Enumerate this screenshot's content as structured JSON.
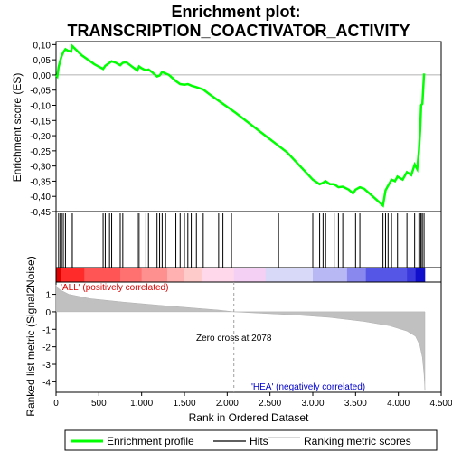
{
  "chart_data": {
    "type": "line",
    "title_line1": "Enrichment plot:",
    "title_line2": "TRANSCRIPTION_COACTIVATOR_ACTIVITY",
    "top_panel": {
      "ylabel": "Enrichment score (ES)",
      "ylim": [
        -0.45,
        0.11
      ],
      "yticks": [
        "0,10",
        "0,05",
        "0,00",
        "-0,05",
        "-0,10",
        "-0,15",
        "-0,20",
        "-0,25",
        "-0,30",
        "-0,35",
        "-0,40",
        "-0,45"
      ],
      "ytick_values": [
        0.1,
        0.05,
        0.0,
        -0.05,
        -0.1,
        -0.15,
        -0.2,
        -0.25,
        -0.3,
        -0.35,
        -0.4,
        -0.45
      ],
      "series_name": "Enrichment profile",
      "color": "#00ff00",
      "points": [
        [
          0,
          0.0
        ],
        [
          15,
          -0.005
        ],
        [
          30,
          0.025
        ],
        [
          50,
          0.048
        ],
        [
          65,
          0.062
        ],
        [
          85,
          0.075
        ],
        [
          110,
          0.085
        ],
        [
          140,
          0.08
        ],
        [
          175,
          0.077
        ],
        [
          190,
          0.095
        ],
        [
          300,
          0.065
        ],
        [
          450,
          0.035
        ],
        [
          550,
          0.02
        ],
        [
          575,
          0.03
        ],
        [
          600,
          0.035
        ],
        [
          625,
          0.04
        ],
        [
          650,
          0.045
        ],
        [
          700,
          0.04
        ],
        [
          750,
          0.032
        ],
        [
          780,
          0.04
        ],
        [
          820,
          0.042
        ],
        [
          900,
          0.025
        ],
        [
          950,
          0.015
        ],
        [
          970,
          0.028
        ],
        [
          1000,
          0.022
        ],
        [
          1050,
          0.015
        ],
        [
          1080,
          0.018
        ],
        [
          1120,
          0.01
        ],
        [
          1180,
          -0.005
        ],
        [
          1210,
          -0.002
        ],
        [
          1240,
          0.01
        ],
        [
          1280,
          0.005
        ],
        [
          1320,
          0.0
        ],
        [
          1400,
          -0.02
        ],
        [
          1450,
          -0.03
        ],
        [
          1500,
          -0.032
        ],
        [
          1540,
          -0.03
        ],
        [
          1580,
          -0.035
        ],
        [
          1640,
          -0.04
        ],
        [
          1720,
          -0.048
        ],
        [
          1800,
          -0.065
        ],
        [
          1950,
          -0.095
        ],
        [
          2100,
          -0.125
        ],
        [
          2400,
          -0.19
        ],
        [
          2700,
          -0.255
        ],
        [
          2950,
          -0.33
        ],
        [
          3000,
          -0.345
        ],
        [
          3080,
          -0.36
        ],
        [
          3120,
          -0.355
        ],
        [
          3150,
          -0.35
        ],
        [
          3200,
          -0.36
        ],
        [
          3250,
          -0.36
        ],
        [
          3300,
          -0.37
        ],
        [
          3350,
          -0.368
        ],
        [
          3420,
          -0.378
        ],
        [
          3470,
          -0.39
        ],
        [
          3500,
          -0.378
        ],
        [
          3550,
          -0.37
        ],
        [
          3600,
          -0.375
        ],
        [
          3700,
          -0.4
        ],
        [
          3820,
          -0.43
        ],
        [
          3850,
          -0.38
        ],
        [
          3880,
          -0.365
        ],
        [
          3920,
          -0.345
        ],
        [
          3960,
          -0.35
        ],
        [
          3990,
          -0.335
        ],
        [
          4050,
          -0.345
        ],
        [
          4100,
          -0.32
        ],
        [
          4150,
          -0.33
        ],
        [
          4190,
          -0.295
        ],
        [
          4220,
          -0.31
        ],
        [
          4240,
          -0.25
        ],
        [
          4255,
          -0.18
        ],
        [
          4265,
          -0.1
        ],
        [
          4280,
          -0.095
        ],
        [
          4300,
          0.005
        ]
      ]
    },
    "hits_panel": {
      "series_name": "Hits",
      "positions": [
        30,
        50,
        65,
        85,
        110,
        175,
        190,
        550,
        575,
        625,
        650,
        750,
        780,
        950,
        970,
        1050,
        1080,
        1180,
        1210,
        1240,
        1280,
        1400,
        1450,
        1500,
        1540,
        1580,
        1640,
        1720,
        1900,
        1950,
        2050,
        2600,
        3000,
        3080,
        3120,
        3150,
        3250,
        3300,
        3350,
        3470,
        3500,
        3550,
        3820,
        3850,
        3880,
        3920,
        3990,
        4100,
        4190,
        4240,
        4255,
        4265,
        4280,
        4300
      ]
    },
    "bottom_panel": {
      "ylabel": "Ranked list metric (Signal2Noise)",
      "ylim": [
        -4.6,
        1.7
      ],
      "yticks": [
        "1",
        "0",
        "-1",
        "-2",
        "-3",
        "-4"
      ],
      "ytick_values": [
        1,
        0,
        -1,
        -2,
        -3,
        -4
      ],
      "series_name": "Ranking metric scores",
      "fill_color": "#c0c0c0",
      "profile": [
        [
          0,
          1.55
        ],
        [
          10,
          1.4
        ],
        [
          50,
          1.25
        ],
        [
          150,
          1.0
        ],
        [
          400,
          0.75
        ],
        [
          800,
          0.55
        ],
        [
          1200,
          0.38
        ],
        [
          1600,
          0.22
        ],
        [
          1900,
          0.1
        ],
        [
          2078,
          0.0
        ],
        [
          2400,
          -0.08
        ],
        [
          2800,
          -0.18
        ],
        [
          3200,
          -0.32
        ],
        [
          3600,
          -0.55
        ],
        [
          3900,
          -0.8
        ],
        [
          4100,
          -1.1
        ],
        [
          4200,
          -1.4
        ],
        [
          4250,
          -1.9
        ],
        [
          4280,
          -2.6
        ],
        [
          4300,
          -3.6
        ],
        [
          4310,
          -4.45
        ]
      ],
      "label_pos": "'ALL' (positively correlated)",
      "label_neg": "'HEA' (negatively correlated)",
      "zero_cross_label": "Zero cross at 2078",
      "zero_cross": 2078
    },
    "xaxis": {
      "xlabel": "Rank in Ordered Dataset",
      "xlim": [
        0,
        4500
      ],
      "xticks": [
        "0",
        "500",
        "1.000",
        "1.500",
        "2.000",
        "2.500",
        "3.000",
        "3.500",
        "4.000",
        "4.500"
      ],
      "xtick_values": [
        0,
        500,
        1000,
        1500,
        2000,
        2500,
        3000,
        3500,
        4000,
        4500
      ]
    },
    "gradient_bar": {
      "total": 4310,
      "segments": [
        [
          0,
          60,
          "#dd0000"
        ],
        [
          60,
          330,
          "#ff2a2a"
        ],
        [
          330,
          750,
          "#ff5555"
        ],
        [
          750,
          1000,
          "#ff7070"
        ],
        [
          1000,
          1300,
          "#ff9090"
        ],
        [
          1300,
          1500,
          "#ffb0b0"
        ],
        [
          1500,
          1700,
          "#ffcaca"
        ],
        [
          1700,
          2078,
          "#ffd8ec"
        ],
        [
          2078,
          2450,
          "#f4d0f4"
        ],
        [
          2450,
          3000,
          "#d8d8f8"
        ],
        [
          3000,
          3400,
          "#b8b8f4"
        ],
        [
          3400,
          3620,
          "#8888ee"
        ],
        [
          3620,
          4100,
          "#5555e6"
        ],
        [
          4100,
          4200,
          "#3838dc"
        ],
        [
          4200,
          4310,
          "#1010cc"
        ]
      ]
    },
    "legend": {
      "items": [
        {
          "label": "Enrichment profile",
          "color": "#00ff00"
        },
        {
          "label": "Hits",
          "color": "#000000"
        },
        {
          "label": "Ranking metric scores",
          "color": "#c0c0c0"
        }
      ]
    }
  }
}
